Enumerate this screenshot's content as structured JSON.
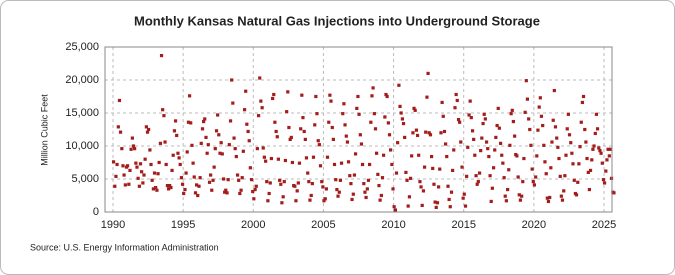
{
  "chart_data": {
    "type": "scatter",
    "title": "Monthly Kansas Natural Gas Injections into Underground Storage",
    "y_label": "Million Cubic Feet",
    "source": "Source: U.S. Energy Information Administration",
    "color": "#a31d1d",
    "grid": true,
    "xlim": [
      1989.43,
      2025.57
    ],
    "xticks": [
      1990,
      1995,
      2000,
      2005,
      2010,
      2015,
      2020,
      2025
    ],
    "ylim": [
      0,
      25000
    ],
    "yticks": [
      0,
      {
        "value": 5000,
        "label": "5,000"
      },
      {
        "value": 10000,
        "label": "10,000"
      },
      {
        "value": 15000,
        "label": "15,000"
      },
      {
        "value": 20000,
        "label": "20,000"
      },
      {
        "value": 25000,
        "label": "25,000"
      }
    ],
    "x": [
      1990.04,
      1990.13,
      1990.21,
      1990.29,
      1990.38,
      1990.46,
      1990.54,
      1990.63,
      1990.71,
      1990.79,
      1990.88,
      1990.96,
      1991.04,
      1991.13,
      1991.21,
      1991.29,
      1991.38,
      1991.46,
      1991.54,
      1991.63,
      1991.71,
      1991.79,
      1991.88,
      1991.96,
      1992.04,
      1992.13,
      1992.21,
      1992.29,
      1992.38,
      1992.46,
      1992.54,
      1992.63,
      1992.71,
      1992.79,
      1992.88,
      1992.96,
      1993.04,
      1993.13,
      1993.21,
      1993.29,
      1993.38,
      1993.46,
      1993.54,
      1993.63,
      1993.71,
      1993.79,
      1993.88,
      1993.96,
      1994.04,
      1994.13,
      1994.21,
      1994.29,
      1994.38,
      1994.46,
      1994.54,
      1994.63,
      1994.71,
      1994.79,
      1994.88,
      1994.96,
      1995.04,
      1995.13,
      1995.21,
      1995.29,
      1995.38,
      1995.46,
      1995.54,
      1995.63,
      1995.71,
      1995.79,
      1995.88,
      1995.96,
      1996.04,
      1996.13,
      1996.21,
      1996.29,
      1996.38,
      1996.46,
      1996.54,
      1996.63,
      1996.71,
      1996.79,
      1996.88,
      1996.96,
      1997.04,
      1997.13,
      1997.21,
      1997.29,
      1997.38,
      1997.46,
      1997.54,
      1997.63,
      1997.71,
      1997.79,
      1997.88,
      1997.96,
      1998.04,
      1998.13,
      1998.21,
      1998.29,
      1998.38,
      1998.46,
      1998.54,
      1998.63,
      1998.71,
      1998.79,
      1998.88,
      1998.96,
      1999.04,
      1999.13,
      1999.21,
      1999.29,
      1999.38,
      1999.46,
      1999.54,
      1999.63,
      1999.71,
      1999.79,
      1999.88,
      1999.96,
      2000.04,
      2000.13,
      2000.21,
      2000.29,
      2000.38,
      2000.46,
      2000.54,
      2000.63,
      2000.71,
      2000.79,
      2000.88,
      2000.96,
      2001.04,
      2001.13,
      2001.21,
      2001.29,
      2001.38,
      2001.46,
      2001.54,
      2001.63,
      2001.71,
      2001.79,
      2001.88,
      2001.96,
      2002.04,
      2002.13,
      2002.21,
      2002.29,
      2002.38,
      2002.46,
      2002.54,
      2002.63,
      2002.71,
      2002.79,
      2002.88,
      2002.96,
      2003.04,
      2003.13,
      2003.21,
      2003.29,
      2003.38,
      2003.46,
      2003.54,
      2003.63,
      2003.71,
      2003.79,
      2003.88,
      2003.96,
      2004.04,
      2004.13,
      2004.21,
      2004.29,
      2004.38,
      2004.46,
      2004.54,
      2004.63,
      2004.71,
      2004.79,
      2004.88,
      2004.96,
      2005.04,
      2005.13,
      2005.21,
      2005.29,
      2005.38,
      2005.46,
      2005.54,
      2005.63,
      2005.71,
      2005.79,
      2005.88,
      2005.96,
      2006.04,
      2006.13,
      2006.21,
      2006.29,
      2006.38,
      2006.46,
      2006.54,
      2006.63,
      2006.71,
      2006.79,
      2006.88,
      2006.96,
      2007.04,
      2007.13,
      2007.21,
      2007.29,
      2007.38,
      2007.46,
      2007.54,
      2007.63,
      2007.71,
      2007.79,
      2007.88,
      2007.96,
      2008.04,
      2008.13,
      2008.21,
      2008.29,
      2008.38,
      2008.46,
      2008.54,
      2008.63,
      2008.71,
      2008.79,
      2008.88,
      2008.96,
      2009.04,
      2009.13,
      2009.21,
      2009.29,
      2009.38,
      2009.46,
      2009.54,
      2009.63,
      2009.71,
      2009.79,
      2009.88,
      2009.96,
      2010.04,
      2010.13,
      2010.21,
      2010.29,
      2010.38,
      2010.46,
      2010.54,
      2010.63,
      2010.71,
      2010.79,
      2010.88,
      2010.96,
      2011.04,
      2011.13,
      2011.21,
      2011.29,
      2011.38,
      2011.46,
      2011.54,
      2011.63,
      2011.71,
      2011.79,
      2011.88,
      2011.96,
      2012.04,
      2012.13,
      2012.21,
      2012.29,
      2012.38,
      2012.46,
      2012.54,
      2012.63,
      2012.71,
      2012.79,
      2012.88,
      2012.96,
      2013.04,
      2013.13,
      2013.21,
      2013.29,
      2013.38,
      2013.46,
      2013.54,
      2013.63,
      2013.71,
      2013.79,
      2013.88,
      2013.96,
      2014.04,
      2014.13,
      2014.21,
      2014.29,
      2014.38,
      2014.46,
      2014.54,
      2014.63,
      2014.71,
      2014.79,
      2014.88,
      2014.96,
      2015.04,
      2015.13,
      2015.21,
      2015.29,
      2015.38,
      2015.46,
      2015.54,
      2015.63,
      2015.71,
      2015.79,
      2015.88,
      2015.96,
      2016.04,
      2016.13,
      2016.21,
      2016.29,
      2016.38,
      2016.46,
      2016.54,
      2016.63,
      2016.71,
      2016.79,
      2016.88,
      2016.96,
      2017.04,
      2017.13,
      2017.21,
      2017.29,
      2017.38,
      2017.46,
      2017.54,
      2017.63,
      2017.71,
      2017.79,
      2017.88,
      2017.96,
      2018.04,
      2018.13,
      2018.21,
      2018.29,
      2018.38,
      2018.46,
      2018.54,
      2018.63,
      2018.71,
      2018.79,
      2018.88,
      2018.96,
      2019.04,
      2019.13,
      2019.21,
      2019.29,
      2019.38,
      2019.46,
      2019.54,
      2019.63,
      2019.71,
      2019.79,
      2019.88,
      2019.96,
      2020.04,
      2020.13,
      2020.21,
      2020.29,
      2020.38,
      2020.46,
      2020.54,
      2020.63,
      2020.71,
      2020.79,
      2020.88,
      2020.96,
      2021.04,
      2021.13,
      2021.21,
      2021.29,
      2021.38,
      2021.46,
      2021.54,
      2021.63,
      2021.71,
      2021.79,
      2021.88,
      2021.96,
      2022.04,
      2022.13,
      2022.21,
      2022.29,
      2022.38,
      2022.46,
      2022.54,
      2022.63,
      2022.71,
      2022.79,
      2022.88,
      2022.96,
      2023.04,
      2023.13,
      2023.21,
      2023.29,
      2023.38,
      2023.46,
      2023.54,
      2023.63,
      2023.71,
      2023.79,
      2023.88,
      2023.96,
      2024.04,
      2024.13,
      2024.21,
      2024.29,
      2024.38,
      2024.46,
      2024.54,
      2024.63,
      2024.71,
      2024.79,
      2024.88,
      2024.96,
      2025.04,
      2025.13,
      2025.21,
      2025.29,
      2025.38,
      2025.46,
      2025.54,
      2025.63,
      2025.71
    ],
    "values": [
      7600,
      3900,
      5400,
      7200,
      12900,
      16900,
      12100,
      9600,
      7000,
      5600,
      4100,
      6800,
      7000,
      4200,
      6300,
      9500,
      11200,
      10000,
      9600,
      7400,
      6800,
      5100,
      3900,
      7300,
      6100,
      4400,
      5600,
      8000,
      12900,
      12100,
      12500,
      9400,
      7200,
      4800,
      3500,
      5900,
      3700,
      3300,
      5800,
      7500,
      10400,
      23700,
      15500,
      14600,
      10600,
      7200,
      4000,
      3500,
      4000,
      3700,
      6300,
      8600,
      12300,
      13800,
      11600,
      8900,
      8200,
      7200,
      5200,
      4200,
      2800,
      3400,
      5900,
      9100,
      13600,
      17600,
      13500,
      10100,
      7400,
      5300,
      2900,
      4100,
      2500,
      3900,
      5200,
      10400,
      12600,
      13700,
      14100,
      11300,
      8900,
      10200,
      4500,
      5600,
      3300,
      4800,
      6800,
      9600,
      12300,
      14700,
      11700,
      8900,
      10500,
      8800,
      5000,
      3000,
      3300,
      2900,
      4900,
      10200,
      13800,
      20000,
      16500,
      11200,
      9600,
      8400,
      5600,
      4800,
      2800,
      3300,
      5200,
      9200,
      15500,
      18300,
      13300,
      12200,
      10800,
      6700,
      4900,
      3100,
      2000,
      3400,
      3900,
      9600,
      14600,
      20300,
      16800,
      15800,
      9700,
      8300,
      7700,
      4600,
      1700,
      2800,
      4400,
      8100,
      17200,
      17800,
      13600,
      12200,
      11400,
      8000,
      4800,
      4200,
      1400,
      2300,
      4600,
      7800,
      15200,
      18200,
      12800,
      11000,
      11300,
      7500,
      4000,
      3900,
      1700,
      3200,
      4400,
      7400,
      12600,
      17700,
      14300,
      12200,
      11000,
      8200,
      5900,
      4600,
      1800,
      2500,
      4300,
      8300,
      13200,
      17500,
      14900,
      10800,
      10200,
      7000,
      4600,
      3800,
      1700,
      2000,
      3500,
      8300,
      13600,
      17700,
      16800,
      12800,
      11000,
      7200,
      4900,
      3400,
      2400,
      3000,
      4800,
      7400,
      14900,
      16400,
      13200,
      11500,
      10600,
      7600,
      5500,
      4300,
      1900,
      2700,
      5600,
      8800,
      15700,
      17500,
      14800,
      11700,
      10300,
      7200,
      4300,
      3000,
      2200,
      3500,
      4800,
      7200,
      13600,
      17600,
      18800,
      14900,
      12600,
      8900,
      5700,
      4000,
      1800,
      2500,
      5200,
      8600,
      14400,
      17800,
      17500,
      13500,
      11700,
      9400,
      7200,
      3500,
      800,
      300,
      5900,
      10500,
      19200,
      16000,
      15000,
      14100,
      13400,
      11300,
      6000,
      4800,
      900,
      2300,
      5100,
      8500,
      12000,
      15700,
      15400,
      12400,
      11600,
      8600,
      4600,
      3800,
      1000,
      3200,
      6800,
      12100,
      17400,
      21000,
      12000,
      11700,
      8400,
      6600,
      4200,
      1500,
      700,
      1400,
      3800,
      6500,
      12000,
      16600,
      14500,
      12200,
      10300,
      8400,
      3900,
      1900,
      800,
      3000,
      6300,
      9400,
      15800,
      17800,
      16900,
      14000,
      13600,
      10600,
      6800,
      2100,
      2700,
      900,
      5400,
      9800,
      14700,
      16800,
      14300,
      12300,
      11000,
      8600,
      5500,
      4200,
      4600,
      5900,
      9300,
      11200,
      13400,
      14800,
      14100,
      10600,
      9600,
      8400,
      5500,
      1600,
      3600,
      6700,
      9400,
      11300,
      13100,
      15700,
      12700,
      10400,
      8600,
      7400,
      5200,
      2400,
      1700,
      3400,
      6400,
      10100,
      14900,
      15400,
      13700,
      11500,
      8700,
      8500,
      5300,
      2600,
      1800,
      2400,
      4600,
      8100,
      15100,
      19900,
      17100,
      14100,
      12500,
      10100,
      6500,
      4600,
      4100,
      5300,
      8500,
      12400,
      15900,
      17300,
      14500,
      13100,
      10100,
      7600,
      5800,
      2100,
      1600,
      2200,
      6700,
      10600,
      13900,
      18400,
      12900,
      11200,
      9800,
      8100,
      5400,
      2400,
      1800,
      3200,
      5500,
      8600,
      12600,
      14800,
      11700,
      10500,
      8900,
      7300,
      4800,
      2800,
      2600,
      4500,
      7300,
      9900,
      13600,
      16600,
      17500,
      12500,
      10600,
      8100,
      6000,
      3400,
      6300,
      7900,
      9500,
      10000,
      11900,
      14800,
      12600,
      9700,
      9300,
      8900,
      7400,
      4900,
      4400,
      6200,
      7900,
      9500,
      8500,
      9500,
      5100,
      3000,
      2900
    ]
  }
}
